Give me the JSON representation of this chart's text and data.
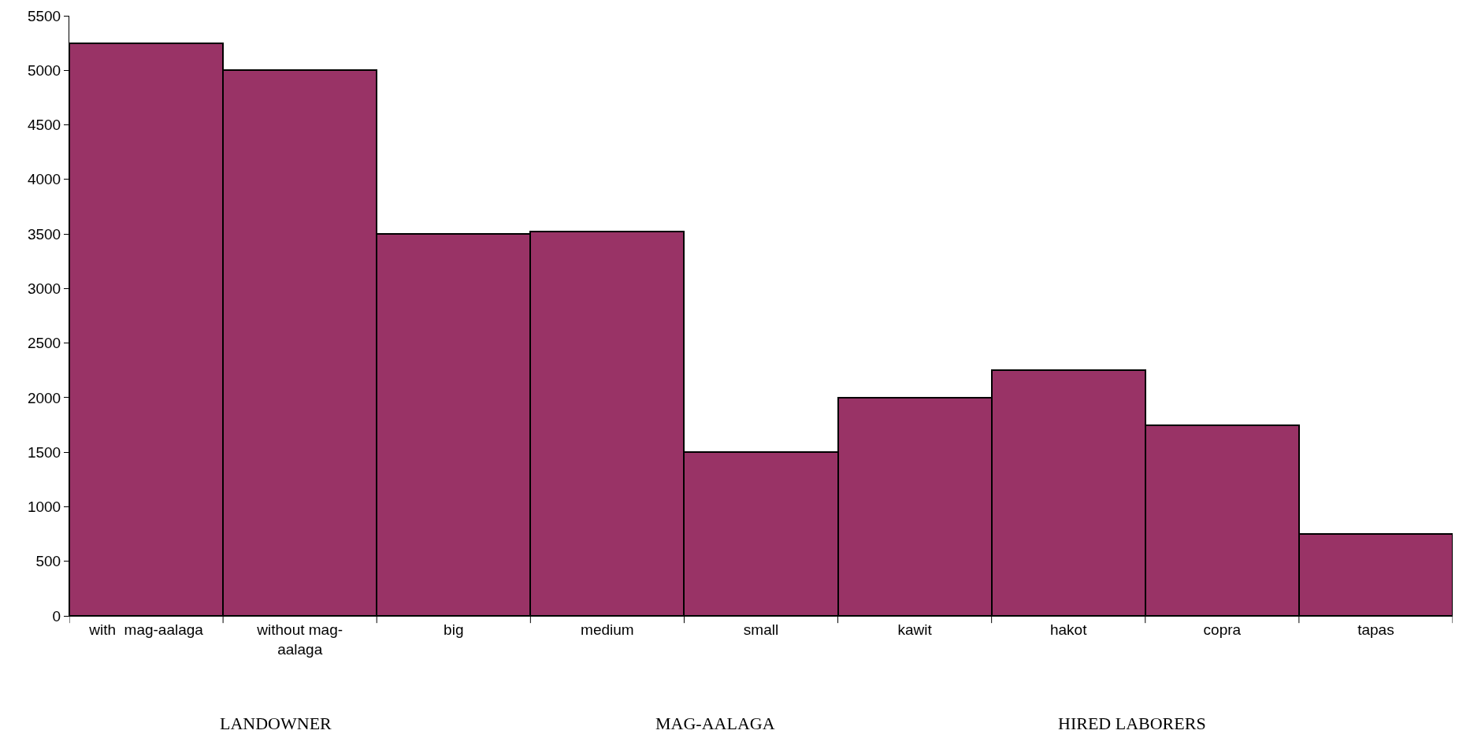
{
  "chart_data": {
    "type": "bar",
    "categories": [
      "with  mag-aalaga",
      "without mag-aalaga",
      "big",
      "medium",
      "small",
      "kawit",
      "hakot",
      "copra",
      "tapas"
    ],
    "values": [
      5250,
      5000,
      3500,
      3520,
      1500,
      2000,
      2250,
      1750,
      750
    ],
    "color": "#993366",
    "ylim": [
      0,
      5500
    ],
    "yticks": [
      0,
      500,
      1000,
      1500,
      2000,
      2500,
      3000,
      3500,
      4000,
      4500,
      5000,
      5500
    ],
    "legend": false,
    "annotations": [
      "LANDOWNER",
      "MAG-AALAGA",
      "HIRED LABORERS"
    ]
  }
}
